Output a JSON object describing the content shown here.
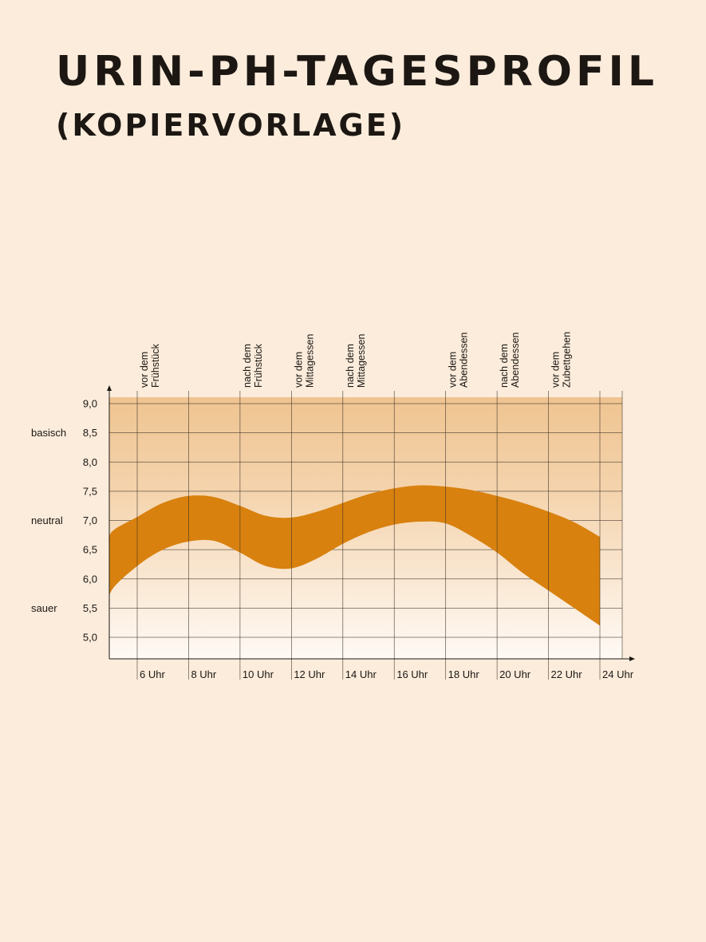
{
  "page": {
    "title": "URIN-PH-TAGESPROFIL",
    "subtitle": "(KOPIERVORLAGE)"
  },
  "colors": {
    "background": "#fbecdc",
    "band": "#d8810e",
    "grid": "#3a2f25",
    "gradient_top": "#efc491",
    "gradient_bottom": "#fffaf5"
  },
  "chart_data": {
    "type": "area",
    "title": "URIN-PH-TAGESPROFIL",
    "xlabel": "",
    "ylabel": "",
    "xlim": [
      4,
      24
    ],
    "ylim": [
      4.65,
      9.1
    ],
    "x_ticks": [
      {
        "x": 6,
        "label": "6 Uhr"
      },
      {
        "x": 8,
        "label": "8 Uhr"
      },
      {
        "x": 10,
        "label": "10 Uhr"
      },
      {
        "x": 12,
        "label": "12 Uhr"
      },
      {
        "x": 14,
        "label": "14 Uhr"
      },
      {
        "x": 16,
        "label": "16 Uhr"
      },
      {
        "x": 18,
        "label": "18 Uhr"
      },
      {
        "x": 20,
        "label": "20 Uhr"
      },
      {
        "x": 22,
        "label": "22 Uhr"
      },
      {
        "x": 24,
        "label": "24 Uhr"
      }
    ],
    "y_ticks": [
      {
        "y": 9.0,
        "label": "9,0"
      },
      {
        "y": 8.5,
        "label": "8,5"
      },
      {
        "y": 8.0,
        "label": "8,0"
      },
      {
        "y": 7.5,
        "label": "7,5"
      },
      {
        "y": 7.0,
        "label": "7,0"
      },
      {
        "y": 6.5,
        "label": "6,5"
      },
      {
        "y": 6.0,
        "label": "6,0"
      },
      {
        "y": 5.5,
        "label": "5,5"
      },
      {
        "y": 5.0,
        "label": "5,0"
      }
    ],
    "zones": [
      {
        "y": 8.5,
        "label": "basisch"
      },
      {
        "y": 7.0,
        "label": "neutral"
      },
      {
        "y": 5.5,
        "label": "sauer"
      }
    ],
    "meal_labels": [
      {
        "x": 6,
        "lines": [
          "vor dem",
          "Frühstück"
        ]
      },
      {
        "x": 10,
        "lines": [
          "nach dem",
          "Frühstück"
        ]
      },
      {
        "x": 12,
        "lines": [
          "vor dem",
          "Mittagessen"
        ]
      },
      {
        "x": 14,
        "lines": [
          "nach dem",
          "Mittagessen"
        ]
      },
      {
        "x": 18,
        "lines": [
          "vor dem",
          "Abendessen"
        ]
      },
      {
        "x": 20,
        "lines": [
          "nach dem",
          "Abendessen"
        ]
      },
      {
        "x": 22,
        "lines": [
          "vor dem",
          "Zubettgehen"
        ]
      }
    ],
    "band": {
      "x": [
        4.0,
        5.0,
        6.0,
        7.0,
        8.0,
        9.0,
        10.0,
        11.0,
        12.0,
        13.0,
        14.0,
        15.0,
        16.0,
        17.0,
        18.0,
        19.0,
        20.0,
        21.0,
        22.0,
        23.0,
        24.0
      ],
      "upper": [
        6.52,
        6.8,
        7.06,
        7.3,
        7.42,
        7.4,
        7.25,
        7.08,
        7.05,
        7.15,
        7.3,
        7.45,
        7.55,
        7.6,
        7.58,
        7.52,
        7.42,
        7.3,
        7.15,
        6.97,
        6.72
      ],
      "lower": [
        5.45,
        5.8,
        6.22,
        6.5,
        6.64,
        6.65,
        6.45,
        6.22,
        6.18,
        6.35,
        6.6,
        6.8,
        6.93,
        6.98,
        6.95,
        6.73,
        6.45,
        6.1,
        5.8,
        5.5,
        5.2
      ]
    }
  }
}
